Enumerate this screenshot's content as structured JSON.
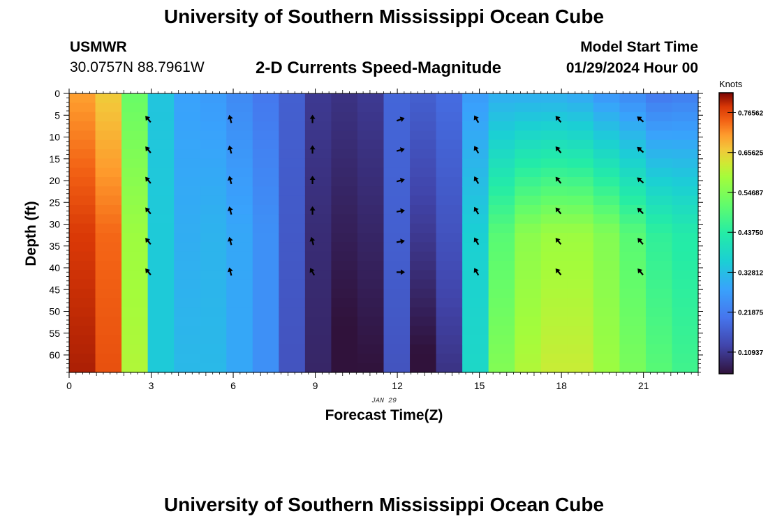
{
  "header": {
    "title": "University of Southern Mississippi Ocean Cube",
    "station_id": "USMWR",
    "station_coords": "30.0757N  88.7961W",
    "subtitle": "2-D Currents Speed-Magnitude",
    "start_label": "Model Start Time",
    "start_value": "01/29/2024 Hour 00"
  },
  "footer": {
    "title": "University of Southern Mississippi Ocean Cube"
  },
  "chart_data": {
    "type": "heatmap",
    "title": "2-D Currents Speed-Magnitude",
    "xlabel": "Forecast Time(Z)",
    "ylabel": "Depth (ft)",
    "date_label": "JAN 29",
    "colorbar_label": "Knots",
    "x_ticks": [
      0,
      3,
      6,
      9,
      12,
      15,
      18,
      21
    ],
    "x_tick_labels": [
      "0",
      "3",
      "6",
      "9",
      "12",
      "15",
      "18",
      "21"
    ],
    "y_ticks": [
      0,
      5,
      10,
      15,
      20,
      25,
      30,
      35,
      40,
      45,
      50,
      55,
      60
    ],
    "y_tick_labels": [
      "0",
      "5",
      "10",
      "15",
      "20",
      "25",
      "30",
      "35",
      "40",
      "45",
      "50",
      "55",
      "60"
    ],
    "xlim": [
      0,
      23
    ],
    "ylim": [
      0,
      64
    ],
    "color_range": [
      0.05,
      0.82
    ],
    "colorbar_ticks": [
      0.10937,
      0.21875,
      0.32812,
      0.4375,
      0.54687,
      0.65625,
      0.76562
    ],
    "colorbar_tick_labels": [
      "0.10937",
      "0.21875",
      "0.32812",
      "0.43750",
      "0.54687",
      "0.65625",
      "0.76562"
    ],
    "speed_by_hour_surface_to_bottom": [
      [
        0.7,
        0.78,
        0.8
      ],
      [
        0.66,
        0.74,
        0.76
      ],
      [
        0.52,
        0.58,
        0.6
      ],
      [
        0.34,
        0.35,
        0.35
      ],
      [
        0.28,
        0.3,
        0.32
      ],
      [
        0.27,
        0.31,
        0.32
      ],
      [
        0.24,
        0.29,
        0.29
      ],
      [
        0.21,
        0.25,
        0.25
      ],
      [
        0.17,
        0.16,
        0.15
      ],
      [
        0.11,
        0.09,
        0.08
      ],
      [
        0.1,
        0.07,
        0.04
      ],
      [
        0.11,
        0.08,
        0.05
      ],
      [
        0.18,
        0.17,
        0.15
      ],
      [
        0.17,
        0.11,
        0.04
      ],
      [
        0.19,
        0.15,
        0.1
      ],
      [
        0.27,
        0.36,
        0.38
      ],
      [
        0.3,
        0.5,
        0.55
      ],
      [
        0.3,
        0.56,
        0.6
      ],
      [
        0.3,
        0.58,
        0.62
      ],
      [
        0.29,
        0.58,
        0.62
      ],
      [
        0.26,
        0.55,
        0.58
      ],
      [
        0.24,
        0.5,
        0.54
      ],
      [
        0.21,
        0.45,
        0.5
      ],
      [
        0.22,
        0.43,
        0.47
      ]
    ],
    "vector_hours": [
      2.9,
      5.9,
      8.9,
      12.1,
      14.9,
      17.9,
      20.9
    ],
    "vector_depths": [
      6,
      13,
      20,
      27,
      34,
      41
    ],
    "vector_directions_deg": [
      [
        320,
        320,
        320,
        320,
        320,
        320
      ],
      [
        345,
        345,
        345,
        345,
        345,
        345
      ],
      [
        0,
        0,
        0,
        0,
        345,
        330
      ],
      [
        70,
        75,
        75,
        80,
        80,
        90
      ],
      [
        330,
        330,
        330,
        330,
        330,
        330
      ],
      [
        320,
        320,
        320,
        320,
        320,
        320
      ],
      [
        310,
        310,
        310,
        315,
        320,
        320
      ]
    ]
  }
}
